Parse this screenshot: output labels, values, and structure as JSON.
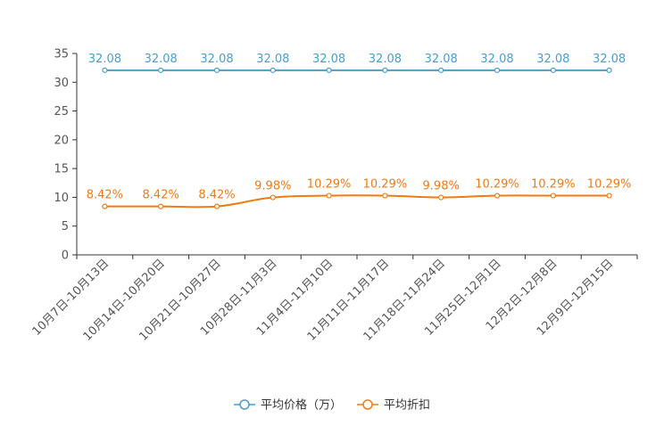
{
  "chart_data": {
    "type": "line",
    "title": "",
    "xlabel": "",
    "ylabel": "",
    "ylim": [
      0,
      35
    ],
    "yticks": [
      0,
      5,
      10,
      15,
      20,
      25,
      30,
      35
    ],
    "categories": [
      "10月7日-10月13日",
      "10月14日-10月20日",
      "10月21日-10月27日",
      "10月28日-11月3日",
      "11月4日-11月10日",
      "11月11日-11月17日",
      "11月18日-11月24日",
      "11月25日-12月1日",
      "12月2日-12月8日",
      "12月9日-12月15日"
    ],
    "series": [
      {
        "name": "平均价格（万）",
        "color": "#4a9ec9",
        "values": [
          32.08,
          32.08,
          32.08,
          32.08,
          32.08,
          32.08,
          32.08,
          32.08,
          32.08,
          32.08
        ],
        "labels": [
          "32.08",
          "32.08",
          "32.08",
          "32.08",
          "32.08",
          "32.08",
          "32.08",
          "32.08",
          "32.08",
          "32.08"
        ]
      },
      {
        "name": "平均折扣",
        "color": "#f07a14",
        "values": [
          8.42,
          8.42,
          8.42,
          9.98,
          10.29,
          10.29,
          9.98,
          10.29,
          10.29,
          10.29
        ],
        "labels": [
          "8.42%",
          "8.42%",
          "8.42%",
          "9.98%",
          "10.29%",
          "10.29%",
          "9.98%",
          "10.29%",
          "10.29%",
          "10.29%"
        ]
      }
    ],
    "legend_position": "bottom-center",
    "grid": false
  }
}
